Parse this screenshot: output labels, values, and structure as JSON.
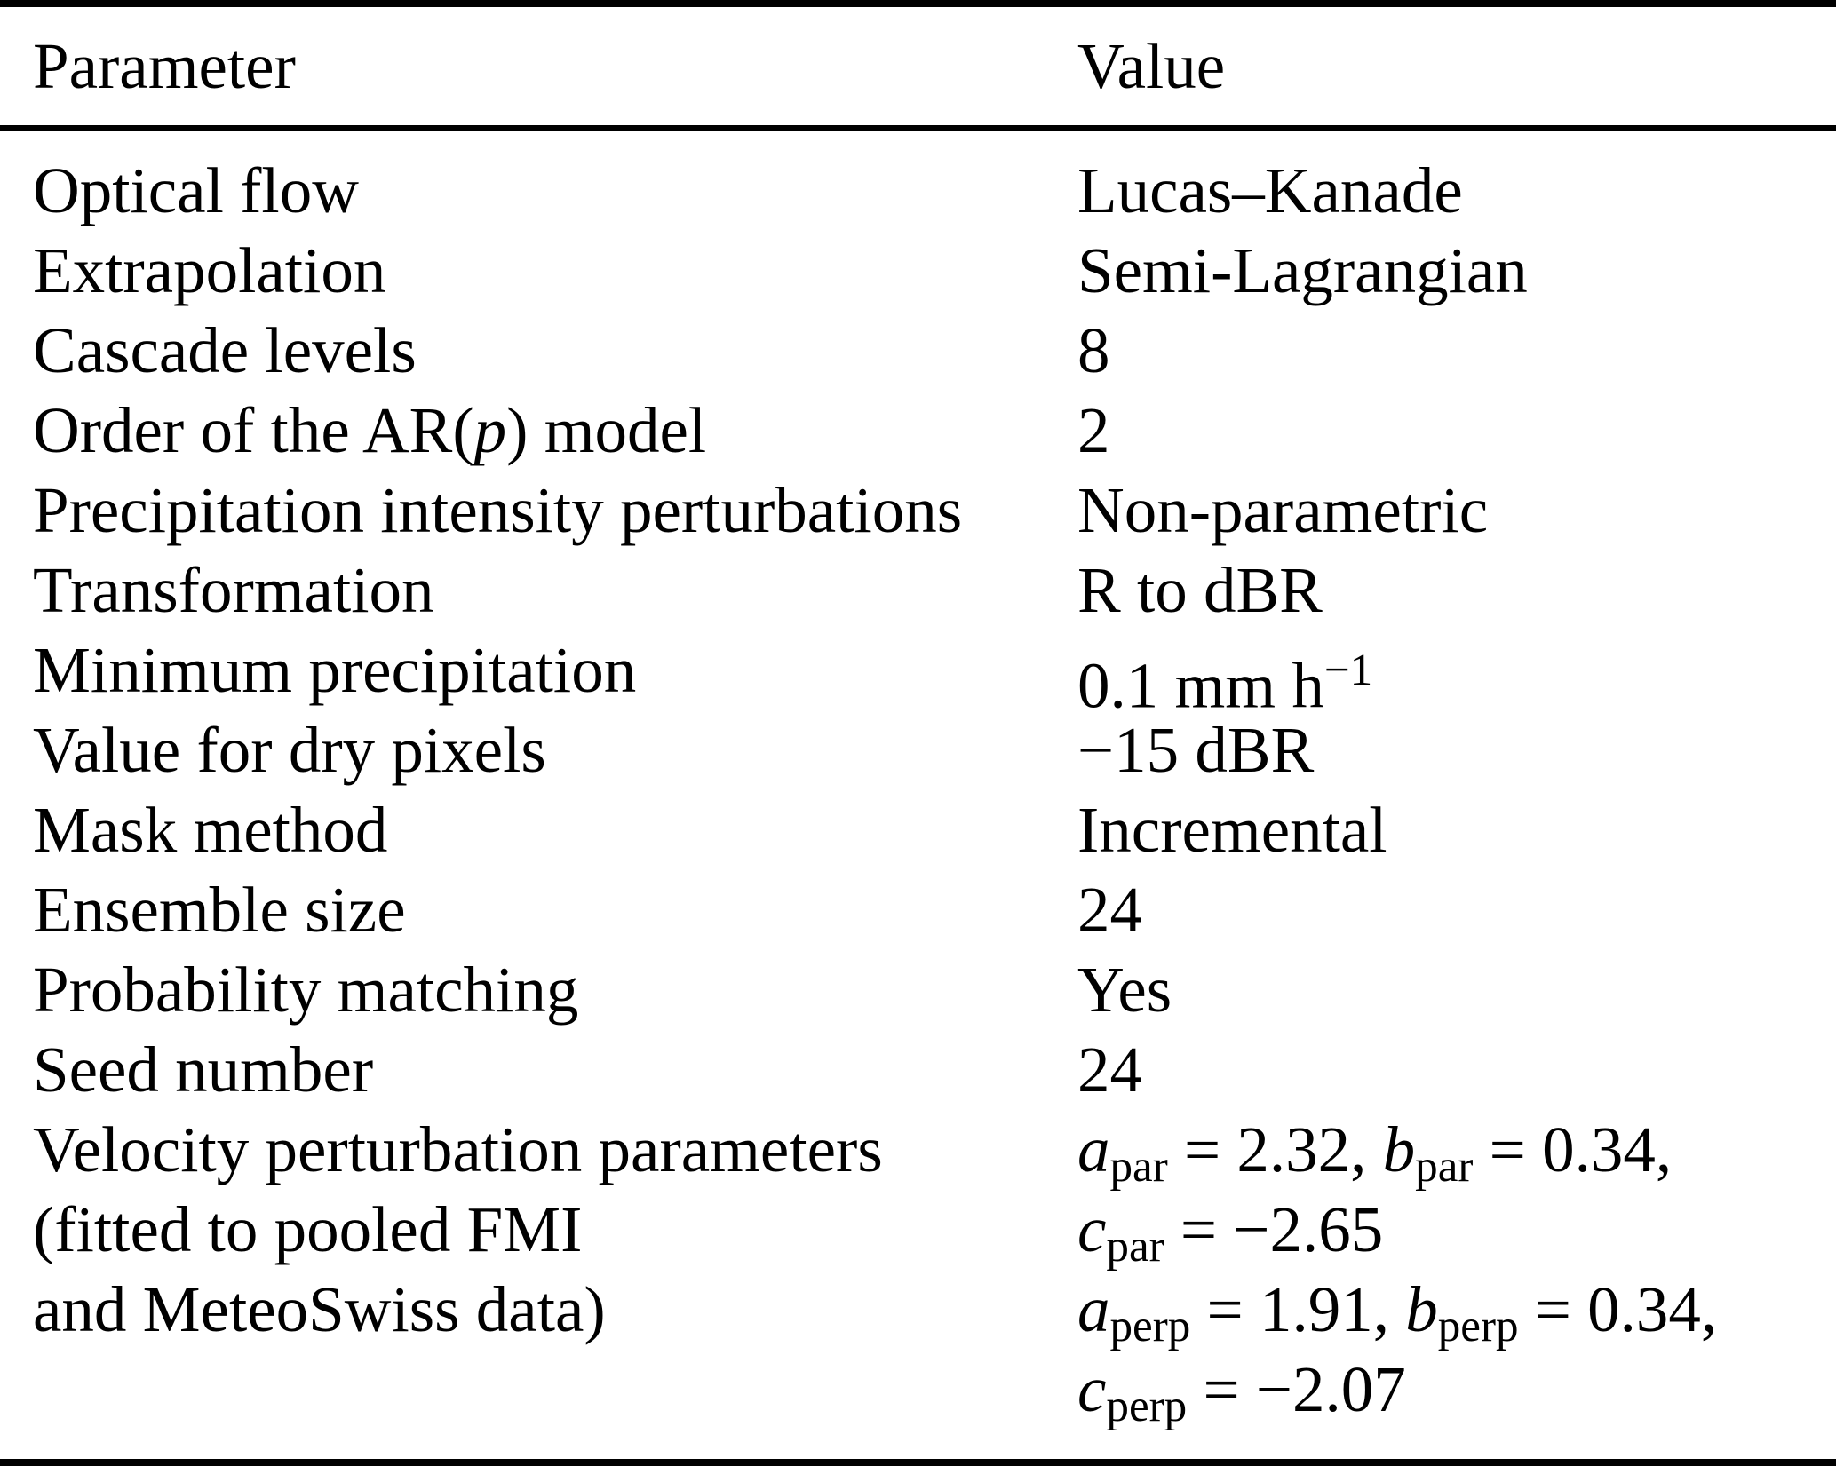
{
  "colors": {
    "background": "#ffffff",
    "text": "#000000",
    "rule": "#000000"
  },
  "table": {
    "header": {
      "parameter": "Parameter",
      "value": "Value"
    },
    "rows": [
      {
        "parameter": "Optical flow",
        "value": "Lucas–Kanade"
      },
      {
        "parameter": "Extrapolation",
        "value": "Semi-Lagrangian"
      },
      {
        "parameter": "Cascade levels",
        "value": "8"
      },
      {
        "parameter_parts": {
          "pre": "Order of the AR(",
          "var": "p",
          "post": ") model"
        },
        "value": "2"
      },
      {
        "parameter": "Precipitation intensity perturbations",
        "value": "Non-parametric"
      },
      {
        "parameter": "Transformation",
        "value": "R to dBR"
      },
      {
        "parameter": "Minimum precipitation",
        "value_parts": {
          "base": "0.1 mm h",
          "sup": "−1"
        }
      },
      {
        "parameter": "Value for dry pixels",
        "value": "−15 dBR"
      },
      {
        "parameter": "Mask method",
        "value": "Incremental"
      },
      {
        "parameter": "Ensemble size",
        "value": "24"
      },
      {
        "parameter": "Probability matching",
        "value": "Yes"
      },
      {
        "parameter": "Seed number",
        "value": "24"
      },
      {
        "parameter_lines": [
          "Velocity perturbation parameters",
          "(fitted to pooled FMI",
          "and MeteoSwiss data)"
        ],
        "value_lines": [
          {
            "var1": "a",
            "sub1": "par",
            "mid1": " = 2.32, ",
            "var2": "b",
            "sub2": "par",
            "mid2": " = 0.34,"
          },
          {
            "var1": "c",
            "sub1": "par",
            "mid1": " = −2.65"
          },
          {
            "var1": "a",
            "sub1": "perp",
            "mid1": " = 1.91, ",
            "var2": "b",
            "sub2": "perp",
            "mid2": " = 0.34,"
          },
          {
            "var1": "c",
            "sub1": "perp",
            "mid1": " = −2.07"
          }
        ]
      }
    ]
  }
}
